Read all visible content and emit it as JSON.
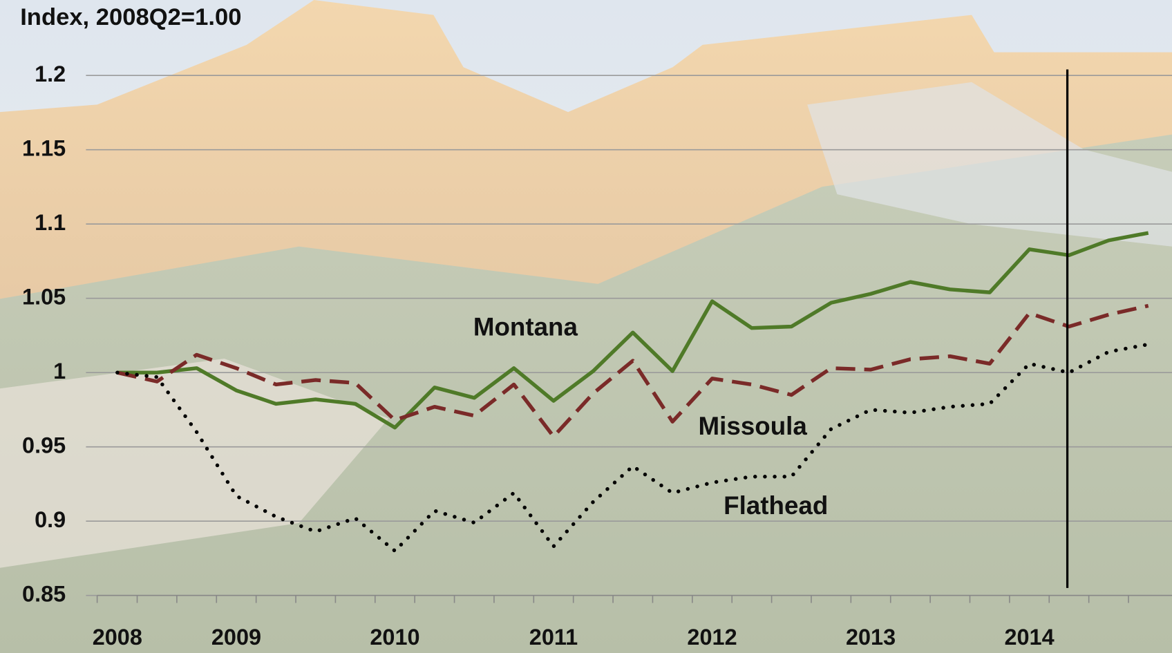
{
  "chart_data": {
    "type": "line",
    "title": "Index, 2008Q2=1.00",
    "categories": [
      "2008",
      null,
      null,
      "2009",
      null,
      null,
      null,
      "2010",
      null,
      null,
      null,
      "2011",
      null,
      null,
      null,
      "2012",
      null,
      null,
      null,
      "2013",
      null,
      null,
      null,
      "2014",
      null,
      null,
      null
    ],
    "series": [
      {
        "name": "Montana",
        "color": "#4f7a28",
        "dash": "solid",
        "values": [
          1.0,
          1.0,
          1.003,
          0.988,
          0.979,
          0.982,
          0.979,
          0.963,
          0.99,
          0.983,
          1.003,
          0.981,
          1.001,
          1.027,
          1.001,
          1.048,
          1.03,
          1.031,
          1.047,
          1.053,
          1.061,
          1.056,
          1.054,
          1.083,
          1.079,
          1.089,
          1.094
        ]
      },
      {
        "name": "Missoula",
        "color": "#7a2a28",
        "dash": "dashed",
        "values": [
          1.0,
          0.994,
          1.012,
          1.003,
          0.992,
          0.995,
          0.993,
          0.968,
          0.977,
          0.971,
          0.992,
          0.957,
          0.986,
          1.008,
          0.967,
          0.996,
          0.992,
          0.985,
          1.003,
          1.002,
          1.009,
          1.011,
          1.006,
          1.04,
          1.031,
          1.039,
          1.045
        ]
      },
      {
        "name": "Flathead",
        "color": "#000000",
        "dash": "dotted",
        "values": [
          1.0,
          0.997,
          0.96,
          0.917,
          0.903,
          0.893,
          0.902,
          0.88,
          0.907,
          0.899,
          0.919,
          0.883,
          0.913,
          0.937,
          0.919,
          0.926,
          0.93,
          0.93,
          0.962,
          0.975,
          0.973,
          0.977,
          0.979,
          1.006,
          1.0,
          1.014,
          1.019
        ]
      }
    ],
    "ylim": [
      0.85,
      1.2
    ],
    "yticks": [
      0.85,
      0.9,
      0.95,
      1,
      1.05,
      1.1,
      1.15,
      1.2
    ],
    "grid": true
  }
}
